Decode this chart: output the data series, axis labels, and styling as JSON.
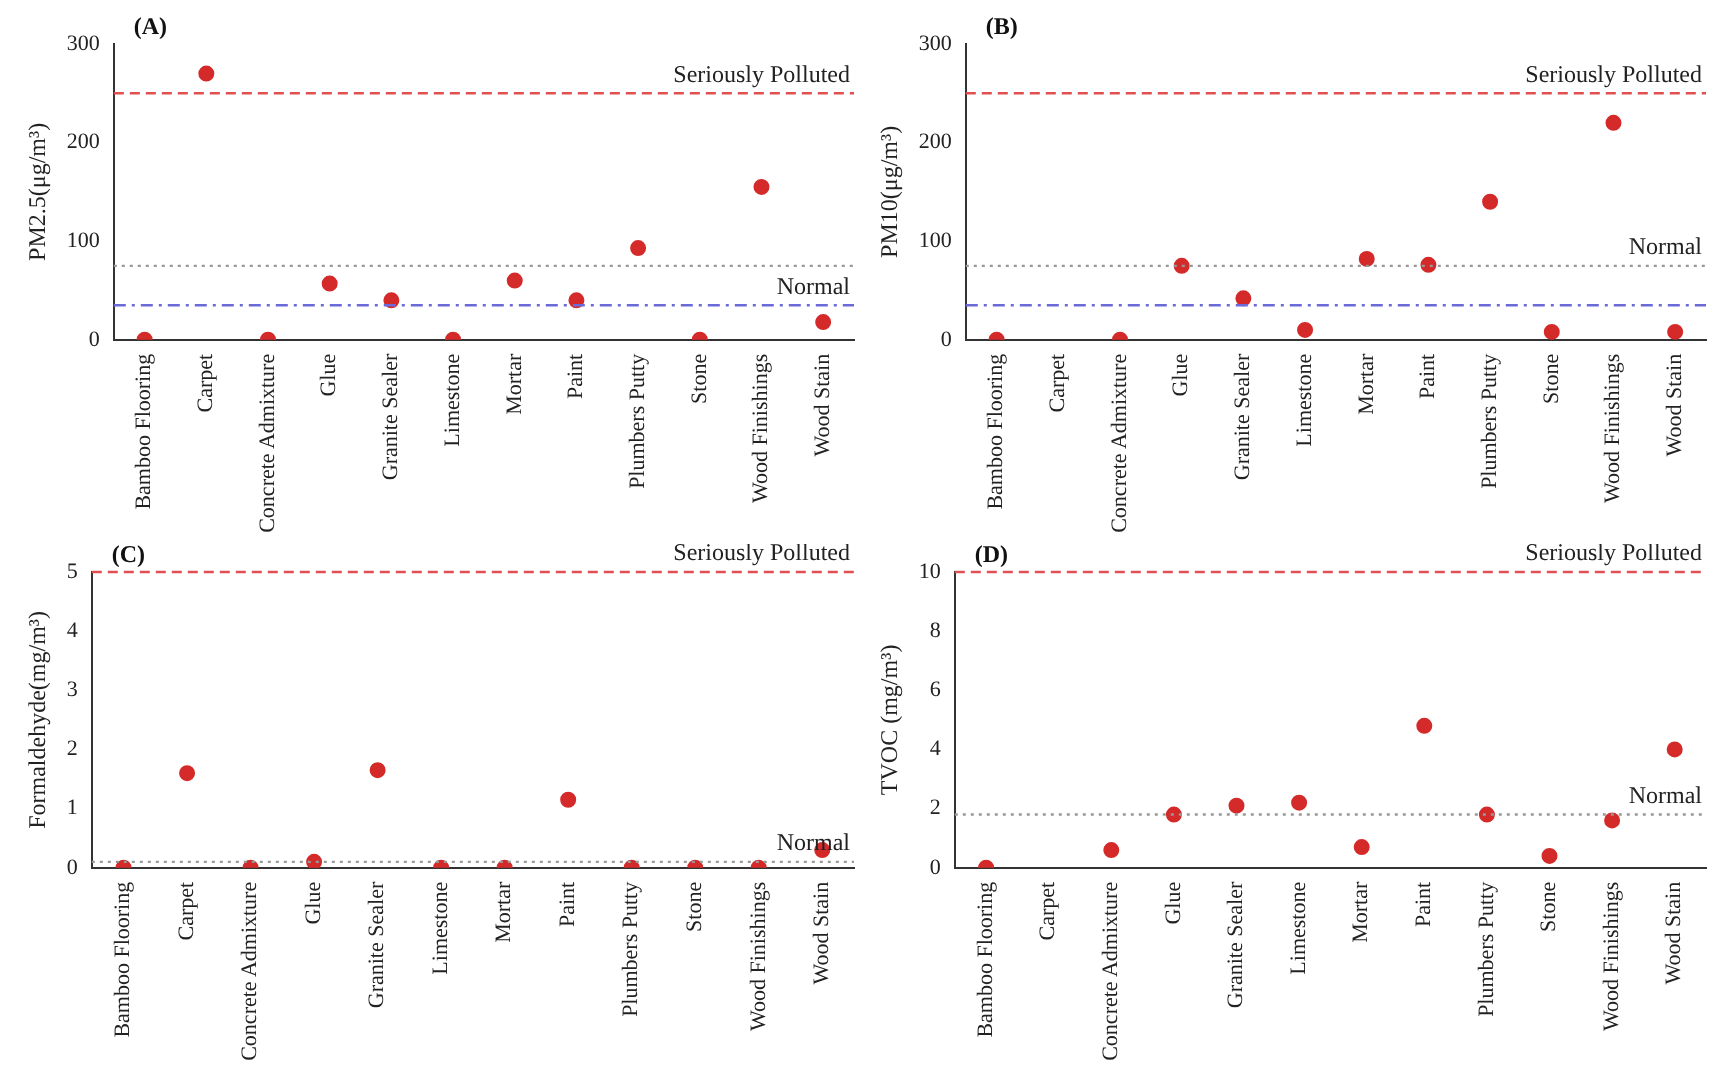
{
  "chart_data": [
    {
      "type": "scatter",
      "title": "(A)",
      "ylabel": "PM2.5(μg/m³)",
      "categories": [
        "Bamboo Flooring",
        "Carpet",
        "Concrete Admixture",
        "Glue",
        "Granite Sealer",
        "Limestone",
        "Mortar",
        "Paint",
        "Plumbers Putty",
        "Stone",
        "Wood Finishings",
        "Wood Stain"
      ],
      "values": [
        0,
        270,
        0,
        57,
        40,
        0,
        60,
        40,
        93,
        0,
        155,
        18
      ],
      "color": "#d42a2a",
      "marker": "circle",
      "ylim": [
        0,
        300
      ],
      "yticks": [
        0,
        100,
        200,
        300
      ],
      "grid": false,
      "legend": false,
      "ref_lines": [
        {
          "axis": "y",
          "value": 250,
          "label": "Seriously Polluted",
          "color": "#e05050",
          "line_style": "dashed"
        },
        {
          "axis": "y",
          "value": 75,
          "label": null,
          "color": "#999999",
          "line_style": "dotted"
        },
        {
          "axis": "y",
          "value": 35,
          "label": "Normal",
          "color": "#6a6ad8",
          "line_style": "dashdot"
        }
      ]
    },
    {
      "type": "scatter",
      "title": "(B)",
      "ylabel": "PM10(μg/m³)",
      "categories": [
        "Bamboo Flooring",
        "Carpet",
        "Concrete Admixture",
        "Glue",
        "Granite Sealer",
        "Limestone",
        "Mortar",
        "Paint",
        "Plumbers Putty",
        "Stone",
        "Wood Finishings",
        "Wood Stain"
      ],
      "values": [
        0,
        null,
        0,
        75,
        42,
        10,
        82,
        76,
        140,
        8,
        220,
        8
      ],
      "color": "#d42a2a",
      "marker": "circle",
      "ylim": [
        0,
        300
      ],
      "yticks": [
        0,
        100,
        200,
        300
      ],
      "grid": false,
      "legend": false,
      "ref_lines": [
        {
          "axis": "y",
          "value": 250,
          "label": "Seriously Polluted",
          "color": "#e05050",
          "line_style": "dashed"
        },
        {
          "axis": "y",
          "value": 75,
          "label": "Normal",
          "color": "#999999",
          "line_style": "dotted"
        },
        {
          "axis": "y",
          "value": 35,
          "label": null,
          "color": "#6a6ad8",
          "line_style": "dashdot"
        }
      ]
    },
    {
      "type": "scatter",
      "title": "(C)",
      "ylabel": "Formaldehyde(mg/m³)",
      "categories": [
        "Bamboo Flooring",
        "Carpet",
        "Concrete Admixture",
        "Glue",
        "Granite Sealer",
        "Limestone",
        "Mortar",
        "Paint",
        "Plumbers Putty",
        "Stone",
        "Wood Finishings",
        "Wood Stain"
      ],
      "values": [
        0,
        1.6,
        0,
        0.1,
        1.65,
        0,
        0,
        1.15,
        0,
        0,
        0,
        0.3
      ],
      "color": "#d42a2a",
      "marker": "circle",
      "ylim": [
        0,
        5
      ],
      "yticks": [
        0,
        1,
        2,
        3,
        4,
        5
      ],
      "grid": false,
      "legend": false,
      "ref_lines": [
        {
          "axis": "y",
          "value": 5,
          "label": "Seriously Polluted",
          "color": "#e05050",
          "line_style": "dashed"
        },
        {
          "axis": "y",
          "value": 0.1,
          "label": "Normal",
          "color": "#999999",
          "line_style": "dotted"
        }
      ]
    },
    {
      "type": "scatter",
      "title": "(D)",
      "ylabel": "TVOC (mg/m³)",
      "categories": [
        "Bamboo Flooring",
        "Carpet",
        "Concrete Admixture",
        "Glue",
        "Granite Sealer",
        "Limestone",
        "Mortar",
        "Paint",
        "Plumbers Putty",
        "Stone",
        "Wood Finishings",
        "Wood Stain"
      ],
      "values": [
        0,
        null,
        0.6,
        1.8,
        2.1,
        2.2,
        0.7,
        4.8,
        1.8,
        0.4,
        1.6,
        4.0
      ],
      "color": "#d42a2a",
      "marker": "circle",
      "ylim": [
        0,
        10
      ],
      "yticks": [
        0,
        2,
        4,
        6,
        8,
        10
      ],
      "grid": false,
      "legend": false,
      "ref_lines": [
        {
          "axis": "y",
          "value": 10,
          "label": "Seriously Polluted",
          "color": "#e05050",
          "line_style": "dashed"
        },
        {
          "axis": "y",
          "value": 1.8,
          "label": "Normal",
          "color": "#999999",
          "line_style": "dotted"
        }
      ]
    }
  ]
}
